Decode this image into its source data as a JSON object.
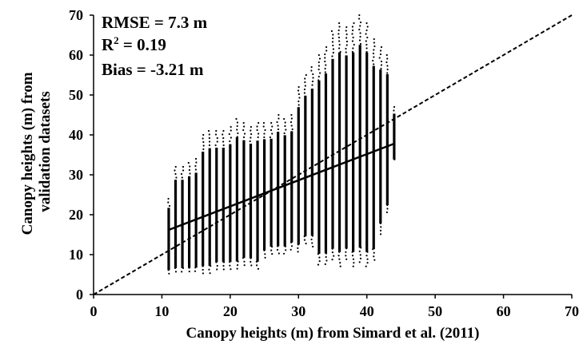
{
  "chart_data": {
    "type": "scatter",
    "xlabel": "Canopy heights (m) from Simard et al. (2011)",
    "ylabel_lines": [
      "Canopy heights (m) from",
      "validation datasets"
    ],
    "xlim": [
      0,
      70
    ],
    "ylim": [
      0,
      70
    ],
    "xticks": [
      "0",
      "10",
      "20",
      "30",
      "40",
      "50",
      "60",
      "70"
    ],
    "yticks": [
      "0",
      "10",
      "20",
      "30",
      "40",
      "50",
      "60",
      "70"
    ],
    "grid": false,
    "annotations": {
      "rmse": "RMSE = 7.3 m",
      "r2_prefix": "R",
      "r2_sup": "2",
      "r2_suffix": " = 0.19",
      "bias": "Bias = -3.21 m"
    },
    "one_to_one_line": {
      "x": [
        0,
        70
      ],
      "y": [
        0,
        70
      ],
      "style": "dashed"
    },
    "regression_line": {
      "x": [
        11,
        44
      ],
      "y": [
        16.2,
        37.8
      ],
      "style": "solid"
    },
    "point_columns": [
      {
        "x": 11,
        "ymin": 5,
        "ymax": 24
      },
      {
        "x": 12,
        "ymin": 5,
        "ymax": 32
      },
      {
        "x": 13,
        "ymin": 5,
        "ymax": 32
      },
      {
        "x": 14,
        "ymin": 5,
        "ymax": 33
      },
      {
        "x": 15,
        "ymin": 5,
        "ymax": 34
      },
      {
        "x": 16,
        "ymin": 5,
        "ymax": 40
      },
      {
        "x": 17,
        "ymin": 5,
        "ymax": 41
      },
      {
        "x": 18,
        "ymin": 6,
        "ymax": 41
      },
      {
        "x": 19,
        "ymin": 6,
        "ymax": 41
      },
      {
        "x": 20,
        "ymin": 6,
        "ymax": 42
      },
      {
        "x": 21,
        "ymin": 6,
        "ymax": 44
      },
      {
        "x": 22,
        "ymin": 7,
        "ymax": 43
      },
      {
        "x": 23,
        "ymin": 7,
        "ymax": 42
      },
      {
        "x": 24,
        "ymin": 6,
        "ymax": 43
      },
      {
        "x": 25,
        "ymin": 9,
        "ymax": 43
      },
      {
        "x": 26,
        "ymin": 10,
        "ymax": 43
      },
      {
        "x": 27,
        "ymin": 10,
        "ymax": 45
      },
      {
        "x": 28,
        "ymin": 10,
        "ymax": 44
      },
      {
        "x": 29,
        "ymin": 11,
        "ymax": 45
      },
      {
        "x": 30,
        "ymin": 10,
        "ymax": 52
      },
      {
        "x": 31,
        "ymin": 12,
        "ymax": 55
      },
      {
        "x": 32,
        "ymin": 12,
        "ymax": 57
      },
      {
        "x": 33,
        "ymin": 7,
        "ymax": 60
      },
      {
        "x": 34,
        "ymin": 7,
        "ymax": 62
      },
      {
        "x": 35,
        "ymin": 8,
        "ymax": 66
      },
      {
        "x": 36,
        "ymin": 7,
        "ymax": 68
      },
      {
        "x": 37,
        "ymin": 8,
        "ymax": 67
      },
      {
        "x": 38,
        "ymin": 7,
        "ymax": 68
      },
      {
        "x": 39,
        "ymin": 8,
        "ymax": 70
      },
      {
        "x": 40,
        "ymin": 7,
        "ymax": 68
      },
      {
        "x": 41,
        "ymin": 8,
        "ymax": 64
      },
      {
        "x": 42,
        "ymin": 15,
        "ymax": 62
      },
      {
        "x": 43,
        "ymin": 20,
        "ymax": 60
      },
      {
        "x": 44,
        "ymin": 33,
        "ymax": 47
      }
    ]
  }
}
